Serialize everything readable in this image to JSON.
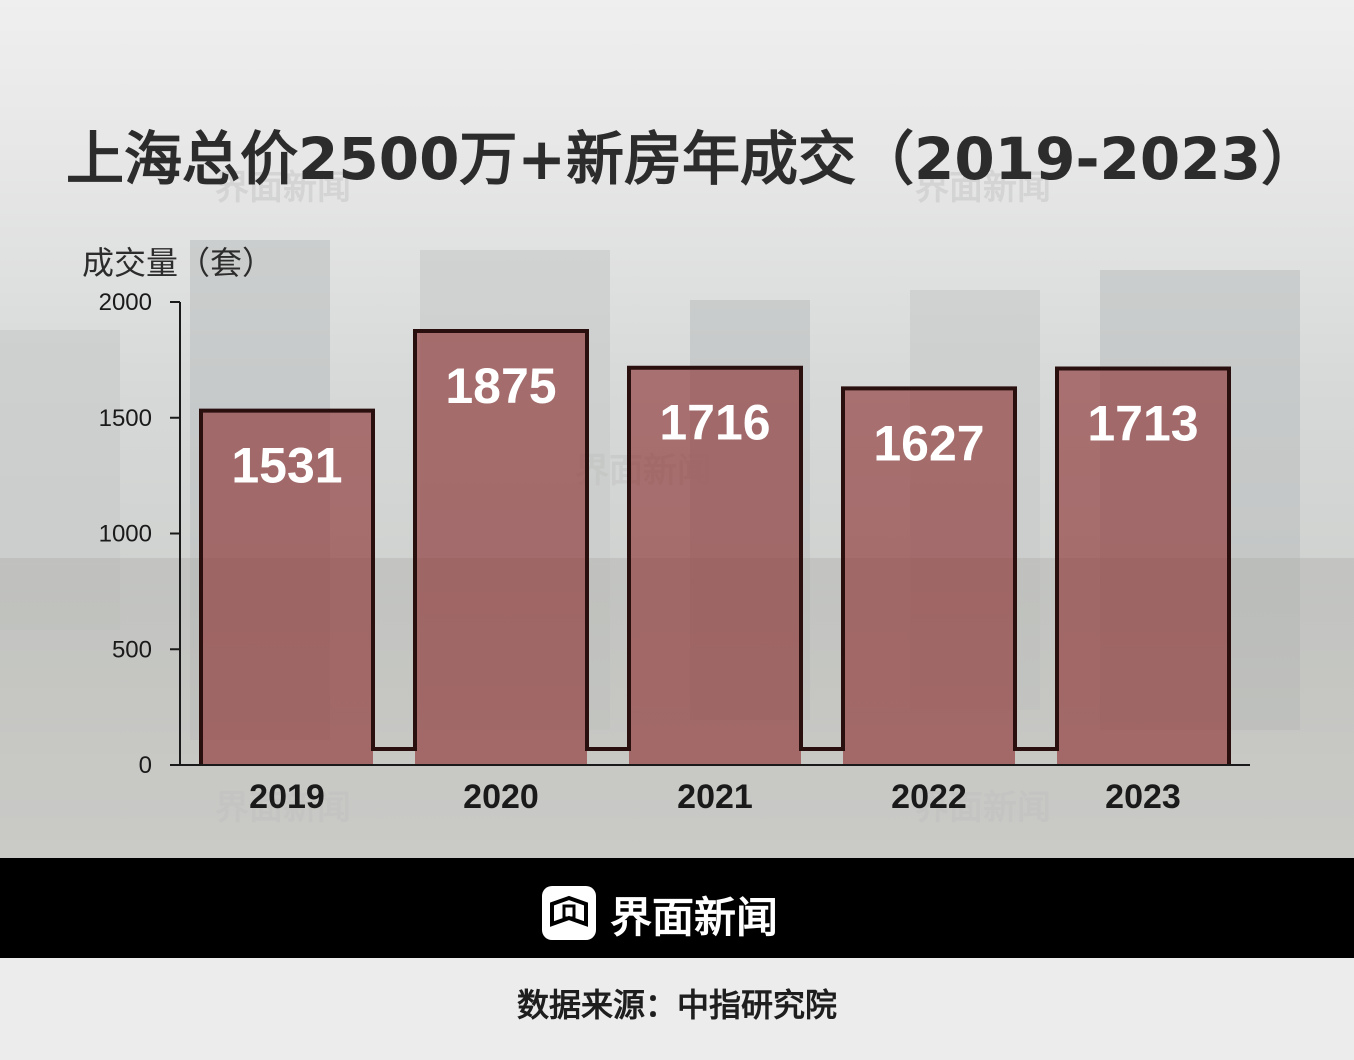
{
  "header": {
    "title": "上海总价2500万+新房年成交（2019-2023）"
  },
  "chart_data": {
    "type": "bar",
    "title": "上海总价2500万+新房年成交（2019-2023）",
    "ylabel": "成交量（套）",
    "xlabel": "",
    "categories": [
      "2019",
      "2020",
      "2021",
      "2022",
      "2023"
    ],
    "values": [
      1531,
      1875,
      1716,
      1627,
      1713
    ],
    "yticks": [
      "0",
      "500",
      "1000",
      "1500",
      "2000"
    ],
    "ylim": [
      0,
      2000
    ],
    "grid": false,
    "bar_color": "#8a2f2f",
    "axis_color": "#1a1a1a"
  },
  "footer": {
    "brand": "界面新闻",
    "source": "数据来源：中指研究院"
  },
  "watermark": {
    "text": "界面新闻"
  },
  "colors": {
    "footer_bg": "#000000",
    "title": "#2c2c2c"
  }
}
